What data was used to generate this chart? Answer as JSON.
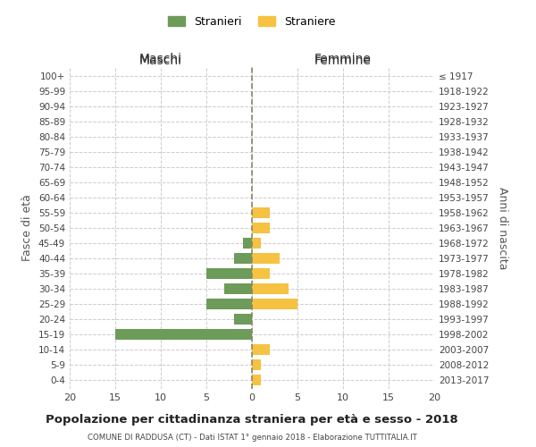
{
  "age_groups": [
    "0-4",
    "5-9",
    "10-14",
    "15-19",
    "20-24",
    "25-29",
    "30-34",
    "35-39",
    "40-44",
    "45-49",
    "50-54",
    "55-59",
    "60-64",
    "65-69",
    "70-74",
    "75-79",
    "80-84",
    "85-89",
    "90-94",
    "95-99",
    "100+"
  ],
  "birth_years": [
    "2013-2017",
    "2008-2012",
    "2003-2007",
    "1998-2002",
    "1993-1997",
    "1988-1992",
    "1983-1987",
    "1978-1982",
    "1973-1977",
    "1968-1972",
    "1963-1967",
    "1958-1962",
    "1953-1957",
    "1948-1952",
    "1943-1947",
    "1938-1942",
    "1933-1937",
    "1928-1932",
    "1923-1927",
    "1918-1922",
    "≤ 1917"
  ],
  "maschi": [
    0,
    0,
    0,
    15,
    2,
    5,
    3,
    5,
    2,
    1,
    0,
    0,
    0,
    0,
    0,
    0,
    0,
    0,
    0,
    0,
    0
  ],
  "femmine": [
    1,
    1,
    2,
    0,
    0,
    5,
    4,
    2,
    3,
    1,
    2,
    2,
    0,
    0,
    0,
    0,
    0,
    0,
    0,
    0,
    0
  ],
  "male_color": "#6d9b5a",
  "female_color": "#f5c242",
  "title": "Popolazione per cittadinanza straniera per età e sesso - 2018",
  "subtitle": "COMUNE DI RADDUSA (CT) - Dati ISTAT 1° gennaio 2018 - Elaborazione TUTTITALIA.IT",
  "xlabel_left": "Maschi",
  "xlabel_right": "Femmine",
  "ylabel_left": "Fasce di età",
  "ylabel_right": "Anni di nascita",
  "legend_male": "Stranieri",
  "legend_female": "Straniere",
  "xlim": 20,
  "bg_color": "#ffffff",
  "grid_color": "#cccccc"
}
